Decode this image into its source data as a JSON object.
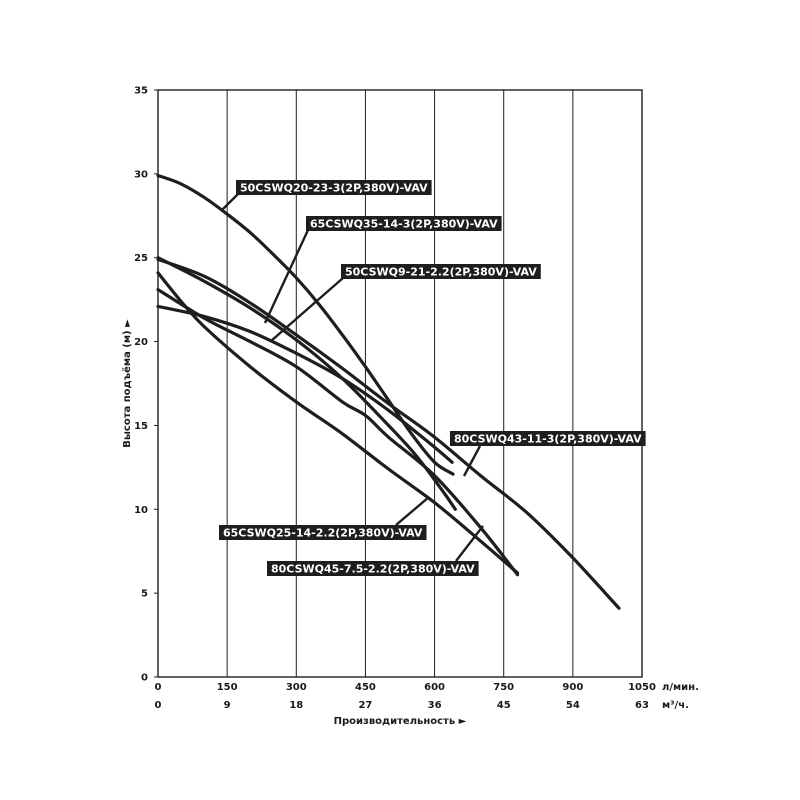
{
  "chart_data": {
    "type": "line",
    "xlabel": "Производительность ►",
    "ylabel": "Высота подъёма (м) ►",
    "x_unit_primary": "л/мин.",
    "x_unit_secondary": "м³/ч.",
    "xlim": [
      0,
      1050
    ],
    "ylim": [
      0,
      35
    ],
    "x_ticks_primary": [
      "0",
      "150",
      "300",
      "450",
      "600",
      "750",
      "900",
      "1050"
    ],
    "x_ticks_secondary": [
      "0",
      "9",
      "18",
      "27",
      "36",
      "45",
      "54",
      "63"
    ],
    "y_ticks": [
      "0",
      "5",
      "10",
      "15",
      "20",
      "25",
      "30",
      "35"
    ],
    "grid": "vertical",
    "series": [
      {
        "name": "50CSWQ20-23-3(2P,380V)-VAV",
        "x": [
          0,
          50,
          100,
          150,
          200,
          250,
          300,
          350,
          400,
          450,
          500,
          550,
          600,
          640
        ],
        "y": [
          29.9,
          29.4,
          28.6,
          27.6,
          26.5,
          25.2,
          23.8,
          22.2,
          20.4,
          18.5,
          16.5,
          14.5,
          12.8,
          12.1
        ]
      },
      {
        "name": "65CSWQ35-14-3(2P,380V)-VAV",
        "x": [
          0,
          100,
          200,
          300,
          400,
          500,
          560,
          620,
          645
        ],
        "y": [
          25.0,
          23.6,
          22.0,
          20.1,
          17.8,
          15.0,
          13.2,
          11.0,
          10.0
        ]
      },
      {
        "name": "50CSWQ9-21-2.2(2P,380V)-VAV",
        "x": [
          0,
          100,
          200,
          300,
          400,
          500,
          600,
          638
        ],
        "y": [
          22.1,
          21.5,
          20.6,
          19.3,
          17.8,
          15.9,
          13.7,
          12.8
        ]
      },
      {
        "name": "80CSWQ43-11-3(2P,380V)-VAV",
        "x": [
          0,
          100,
          200,
          300,
          400,
          500,
          600,
          700,
          800,
          900,
          1000
        ],
        "y": [
          24.9,
          23.9,
          22.3,
          20.4,
          18.4,
          16.3,
          14.3,
          12.0,
          9.8,
          7.1,
          4.1
        ]
      },
      {
        "name": "65CSWQ25-14-2.2(2P,380V)-VAV",
        "x": [
          0,
          50,
          100,
          200,
          300,
          400,
          500,
          600,
          700,
          780
        ],
        "y": [
          24.1,
          22.4,
          20.9,
          18.5,
          16.4,
          14.5,
          12.4,
          10.4,
          8.1,
          6.2
        ]
      },
      {
        "name": "80CSWQ45-7.5-2.2(2P,380V)-VAV",
        "x": [
          0,
          100,
          200,
          300,
          400,
          450,
          500,
          600,
          700,
          780
        ],
        "y": [
          23.1,
          21.4,
          20.0,
          18.5,
          16.4,
          15.6,
          14.3,
          12.0,
          8.9,
          6.1
        ]
      }
    ],
    "label_positions": "inline annotations with leader lines"
  }
}
